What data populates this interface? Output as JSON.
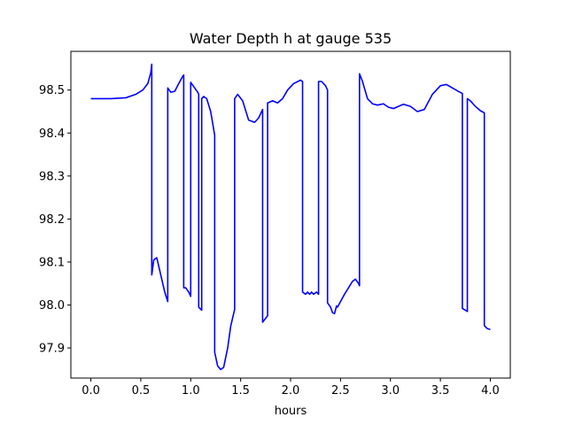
{
  "chart_data": {
    "type": "line",
    "title": "Water Depth h at gauge 535",
    "xlabel": "hours",
    "ylabel": "",
    "xlim": [
      -0.2,
      4.2
    ],
    "ylim": [
      97.83,
      98.59
    ],
    "xticks": [
      0.0,
      0.5,
      1.0,
      1.5,
      2.0,
      2.5,
      3.0,
      3.5,
      4.0
    ],
    "xtick_labels": [
      "0.0",
      "0.5",
      "1.0",
      "1.5",
      "2.0",
      "2.5",
      "3.0",
      "3.5",
      "4.0"
    ],
    "yticks": [
      97.9,
      98.0,
      98.1,
      98.2,
      98.3,
      98.4,
      98.5
    ],
    "ytick_labels": [
      "97.9",
      "98.0",
      "98.1",
      "98.2",
      "98.3",
      "98.4",
      "98.5"
    ],
    "grid": false,
    "series": [
      {
        "color": "#0000ff",
        "x": [
          0.0,
          0.2,
          0.35,
          0.45,
          0.52,
          0.57,
          0.6,
          0.61,
          0.61,
          0.63,
          0.66,
          0.7,
          0.74,
          0.77,
          0.77,
          0.8,
          0.84,
          0.88,
          0.92,
          0.93,
          0.93,
          0.95,
          0.98,
          1.0,
          1.0,
          1.03,
          1.07,
          1.08,
          1.08,
          1.1,
          1.11,
          1.11,
          1.13,
          1.16,
          1.2,
          1.24,
          1.24,
          1.27,
          1.3,
          1.33,
          1.37,
          1.4,
          1.44,
          1.44,
          1.47,
          1.52,
          1.58,
          1.64,
          1.68,
          1.72,
          1.72,
          1.77,
          1.77,
          1.82,
          1.87,
          1.92,
          1.97,
          2.03,
          2.1,
          2.12,
          2.12,
          2.15,
          2.17,
          2.19,
          2.21,
          2.23,
          2.26,
          2.28,
          2.28,
          2.31,
          2.33,
          2.35,
          2.37,
          2.37,
          2.4,
          2.42,
          2.44,
          2.46,
          2.47,
          2.5,
          2.54,
          2.58,
          2.62,
          2.65,
          2.68,
          2.69,
          2.69,
          2.72,
          2.77,
          2.82,
          2.87,
          2.93,
          2.98,
          3.03,
          3.08,
          3.13,
          3.2,
          3.27,
          3.34,
          3.42,
          3.5,
          3.56,
          3.62,
          3.68,
          3.72,
          3.72,
          3.77,
          3.77,
          3.8,
          3.85,
          3.9,
          3.94,
          3.94,
          3.97,
          4.0
        ],
        "y": [
          98.48,
          98.48,
          98.482,
          98.49,
          98.5,
          98.515,
          98.54,
          98.56,
          98.07,
          98.105,
          98.11,
          98.07,
          98.03,
          98.008,
          98.505,
          98.495,
          98.497,
          98.515,
          98.532,
          98.535,
          98.04,
          98.04,
          98.03,
          98.02,
          98.518,
          98.508,
          98.495,
          98.49,
          97.995,
          97.99,
          97.988,
          98.48,
          98.485,
          98.48,
          98.45,
          98.395,
          97.89,
          97.858,
          97.85,
          97.855,
          97.9,
          97.95,
          97.99,
          98.48,
          98.49,
          98.475,
          98.43,
          98.425,
          98.435,
          98.455,
          97.96,
          97.975,
          98.47,
          98.475,
          98.47,
          98.48,
          98.5,
          98.515,
          98.523,
          98.52,
          98.03,
          98.025,
          98.03,
          98.025,
          98.03,
          98.025,
          98.03,
          98.025,
          98.52,
          98.52,
          98.515,
          98.51,
          98.5,
          98.005,
          97.995,
          97.982,
          97.98,
          97.998,
          97.995,
          98.008,
          98.025,
          98.04,
          98.055,
          98.06,
          98.05,
          98.045,
          98.538,
          98.52,
          98.48,
          98.468,
          98.465,
          98.468,
          98.46,
          98.457,
          98.462,
          98.467,
          98.462,
          98.45,
          98.455,
          98.49,
          98.51,
          98.513,
          98.505,
          98.497,
          98.492,
          97.992,
          97.985,
          98.48,
          98.475,
          98.462,
          98.452,
          98.447,
          97.952,
          97.945,
          97.943
        ]
      }
    ]
  }
}
